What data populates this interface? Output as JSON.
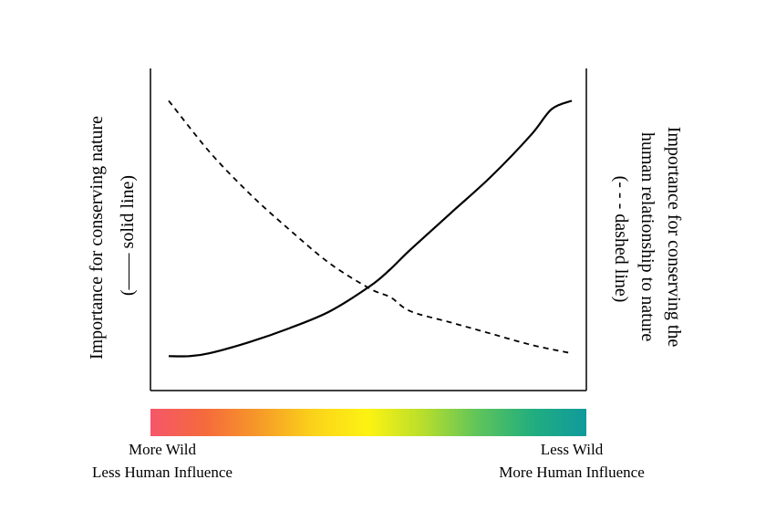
{
  "chart_data": {
    "type": "line",
    "title": "",
    "ylabel_left": [
      "Importance for conserving nature",
      "(—— solid line)"
    ],
    "ylabel_right": [
      "Importance for conserving the",
      "human relationship to nature",
      "(- - - dashed line)"
    ],
    "series": [
      {
        "name": "Importance for conserving nature",
        "style": "solid",
        "x": [
          0,
          0.05,
          0.1,
          0.2,
          0.3,
          0.4,
          0.5,
          0.55,
          0.6,
          0.7,
          0.8,
          0.9,
          0.95,
          1.0
        ],
        "y": [
          0.09,
          0.09,
          0.1,
          0.14,
          0.19,
          0.25,
          0.34,
          0.4,
          0.47,
          0.6,
          0.73,
          0.88,
          0.97,
          1.0
        ]
      },
      {
        "name": "Importance for conserving the human relationship to nature",
        "style": "dashed",
        "x": [
          0,
          0.1,
          0.2,
          0.3,
          0.4,
          0.5,
          0.55,
          0.6,
          0.7,
          0.8,
          0.9,
          1.0
        ],
        "y": [
          1.0,
          0.82,
          0.67,
          0.54,
          0.42,
          0.33,
          0.3,
          0.25,
          0.21,
          0.17,
          0.13,
          0.1
        ]
      }
    ],
    "xlim": [
      0,
      1
    ],
    "ylim": [
      0,
      1.05
    ],
    "grid": false,
    "colors": {
      "solid": "#000000",
      "dashed": "#000000",
      "axis": "#000000"
    }
  },
  "gradient": {
    "stops": [
      "#f5566a",
      "#f56a3c",
      "#f69a28",
      "#fbd31a",
      "#fdf312",
      "#b8de2c",
      "#5fc45a",
      "#22ae7e",
      "#0f9a9c"
    ]
  },
  "captions": {
    "left_line1": "More Wild",
    "left_line2": "Less Human Influence",
    "right_line1": "Less Wild",
    "right_line2": "More Human Influence"
  }
}
